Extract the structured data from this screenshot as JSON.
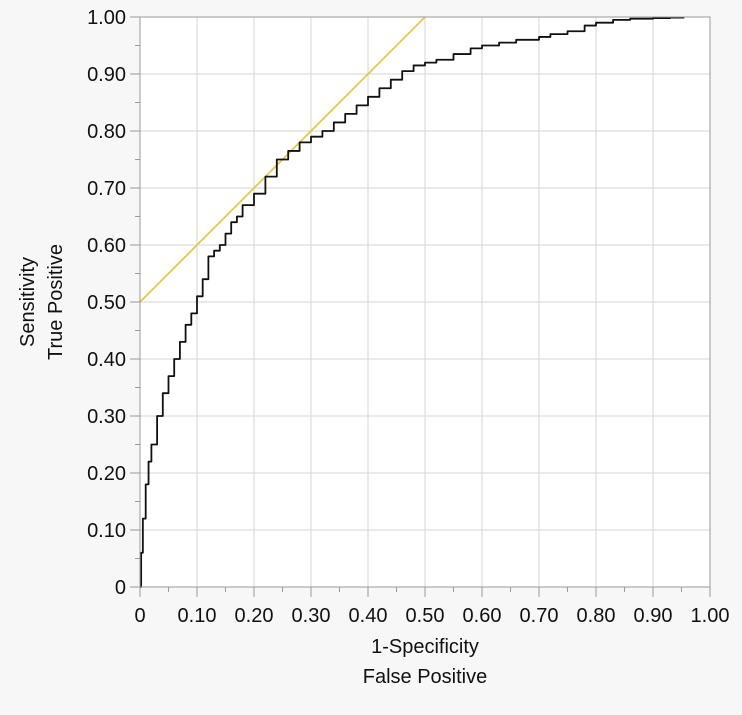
{
  "colors": {
    "background": "#f7f7f7",
    "plot_background": "#ffffff",
    "grid": "#d6d6d6",
    "frame": "#9a9a9a",
    "curve": "#111111",
    "tangent": "#e3c84a"
  },
  "chart_data": {
    "type": "line",
    "title": "",
    "xlabel_lines": [
      "1-Specificity",
      "False Positive"
    ],
    "ylabel_lines": [
      "Sensitivity",
      "True Positive"
    ],
    "xlim": [
      0,
      1
    ],
    "ylim": [
      0,
      1
    ],
    "grid": true,
    "x_tick_values": [
      0,
      0.1,
      0.2,
      0.3,
      0.4,
      0.5,
      0.6,
      0.7,
      0.8,
      0.9,
      1.0
    ],
    "x_tick_labels": [
      "0",
      "0.10",
      "0.20",
      "0.30",
      "0.40",
      "0.50",
      "0.60",
      "0.70",
      "0.80",
      "0.90",
      "1.00"
    ],
    "y_tick_values": [
      0,
      0.1,
      0.2,
      0.3,
      0.4,
      0.5,
      0.6,
      0.7,
      0.8,
      0.9,
      1.0
    ],
    "y_tick_labels": [
      "0",
      "0.10",
      "0.20",
      "0.30",
      "0.40",
      "0.50",
      "0.60",
      "0.70",
      "0.80",
      "0.90",
      "1.00"
    ],
    "series": [
      {
        "role": "roc_curve",
        "x": [
          0,
          0.002,
          0.005,
          0.01,
          0.015,
          0.02,
          0.03,
          0.04,
          0.05,
          0.06,
          0.07,
          0.08,
          0.09,
          0.1,
          0.11,
          0.12,
          0.13,
          0.14,
          0.15,
          0.16,
          0.17,
          0.18,
          0.2,
          0.22,
          0.24,
          0.26,
          0.28,
          0.3,
          0.32,
          0.34,
          0.36,
          0.38,
          0.4,
          0.42,
          0.44,
          0.46,
          0.48,
          0.5,
          0.52,
          0.55,
          0.58,
          0.6,
          0.63,
          0.66,
          0.7,
          0.72,
          0.75,
          0.78,
          0.8,
          0.83,
          0.86,
          0.9,
          0.93,
          0.955
        ],
        "y": [
          0,
          0.06,
          0.12,
          0.18,
          0.22,
          0.25,
          0.3,
          0.34,
          0.37,
          0.4,
          0.43,
          0.46,
          0.48,
          0.51,
          0.54,
          0.58,
          0.59,
          0.6,
          0.62,
          0.64,
          0.65,
          0.67,
          0.69,
          0.72,
          0.75,
          0.765,
          0.78,
          0.79,
          0.8,
          0.815,
          0.83,
          0.845,
          0.86,
          0.875,
          0.89,
          0.905,
          0.915,
          0.92,
          0.925,
          0.935,
          0.945,
          0.95,
          0.955,
          0.96,
          0.965,
          0.97,
          0.975,
          0.985,
          0.99,
          0.995,
          0.997,
          0.998,
          0.999,
          0.999
        ]
      },
      {
        "role": "tangent_line",
        "x": [
          0,
          0.5
        ],
        "y": [
          0.5,
          1.0
        ]
      }
    ]
  }
}
